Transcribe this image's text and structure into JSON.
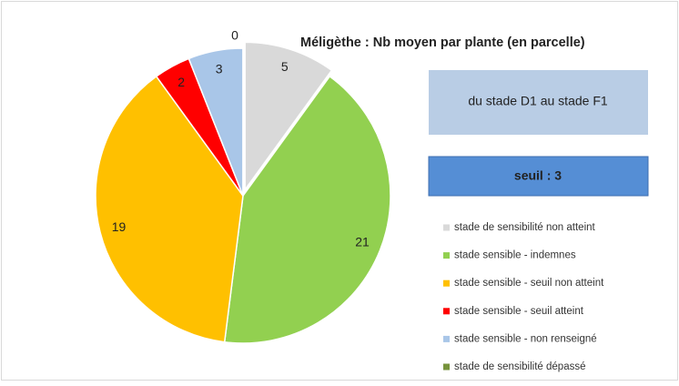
{
  "chart_data": {
    "type": "pie",
    "title": "Méligèthe : Nb moyen par plante (en parcelle)",
    "annotations": [
      "du stade D1 au stade F1",
      "seuil : 3"
    ],
    "categories": [
      "stade de sensibilité non atteint",
      "stade sensible - indemnes",
      "stade sensible - seuil non atteint",
      "stade sensible - seuil atteint",
      "stade sensible - non renseigné",
      "stade de sensibilité dépassé"
    ],
    "values": [
      5,
      21,
      19,
      2,
      3,
      0
    ],
    "colors": [
      "#d9d9d9",
      "#92d050",
      "#ffc000",
      "#ff0000",
      "#a9c6e8",
      "#77933c"
    ],
    "legend": "right"
  }
}
